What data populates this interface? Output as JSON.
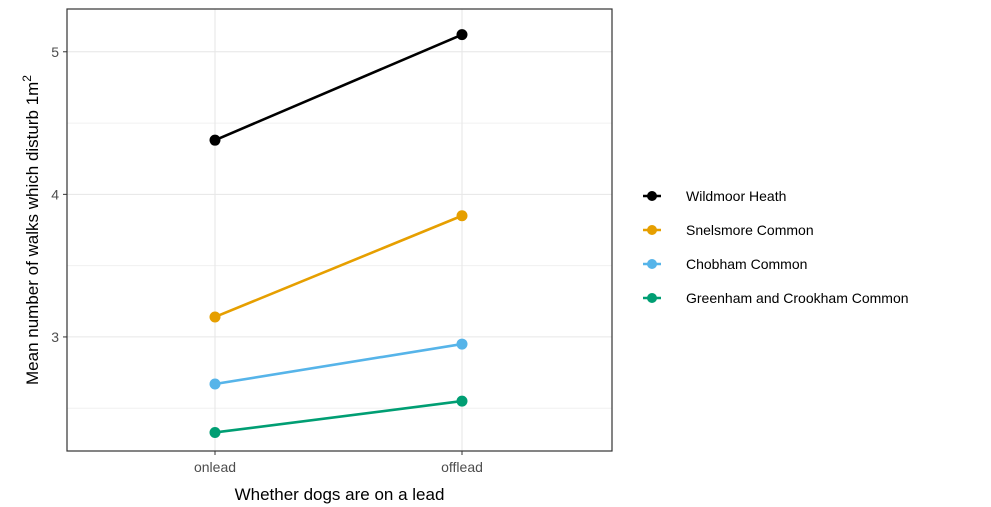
{
  "chart_data": {
    "type": "line",
    "categories": [
      "onlead",
      "offlead"
    ],
    "xlabel": "Whether dogs are on a lead",
    "ylabel_main": "Mean number of walks which disturb 1m",
    "ylabel_sup": "2",
    "ylim": [
      2.2,
      5.3
    ],
    "yticks": [
      3,
      4,
      5
    ],
    "yticks_minor": [
      2.5,
      3.5,
      4.5
    ],
    "grid": true,
    "legend_position": "right",
    "series": [
      {
        "name": "Wildmoor Heath",
        "values": [
          4.38,
          5.12
        ],
        "color": "#000000"
      },
      {
        "name": "Snelsmore Common",
        "values": [
          3.14,
          3.85
        ],
        "color": "#E69F00"
      },
      {
        "name": "Chobham Common",
        "values": [
          2.67,
          2.95
        ],
        "color": "#56B4E9"
      },
      {
        "name": "Greenham and Crookham Common",
        "values": [
          2.33,
          2.55
        ],
        "color": "#009E73"
      }
    ]
  }
}
